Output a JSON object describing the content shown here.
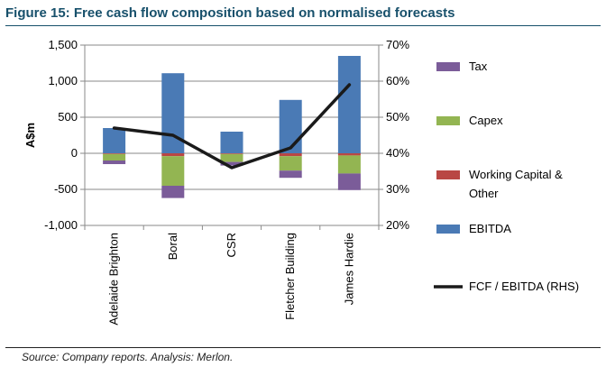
{
  "header": {
    "title": "Figure 15: Free cash flow composition based on normalised forecasts"
  },
  "footer": {
    "source": "Source: Company reports. Analysis: Merlon."
  },
  "chart_data": {
    "type": "bar",
    "stacked": true,
    "categories": [
      "Adelaide Brighton",
      "Boral",
      "CSR",
      "Fletcher Building",
      "James Hardie"
    ],
    "ylabel": "A$m",
    "ylim": [
      -1000,
      1500
    ],
    "yticks": [
      -1000,
      -500,
      0,
      500,
      1000,
      1500
    ],
    "ytick_labels": [
      "-1,000",
      "-500",
      "0",
      "500",
      "1,000",
      "1,500"
    ],
    "y2lim": [
      20,
      70
    ],
    "y2ticks": [
      20,
      30,
      40,
      50,
      60,
      70
    ],
    "y2tick_labels": [
      "20%",
      "30%",
      "40%",
      "50%",
      "60%",
      "70%"
    ],
    "grid": true,
    "legend_position": "right",
    "series": [
      {
        "name": "Tax",
        "kind": "bar",
        "color": "#7b5c99",
        "values": [
          -50,
          -170,
          -50,
          -100,
          -230
        ]
      },
      {
        "name": "Capex",
        "kind": "bar",
        "color": "#93b552",
        "values": [
          -90,
          -410,
          -110,
          -200,
          -250
        ]
      },
      {
        "name": "Working Capital & Other",
        "kind": "bar",
        "color": "#b94744",
        "values": [
          -10,
          -40,
          -10,
          -40,
          -30
        ]
      },
      {
        "name": "EBITDA",
        "kind": "bar",
        "color": "#4a7ab5",
        "values": [
          350,
          1110,
          300,
          740,
          1350
        ]
      },
      {
        "name": "FCF / EBITDA (RHS)",
        "kind": "line",
        "axis": "right",
        "color": "#1a1a1a",
        "values": [
          47,
          45,
          36,
          41.5,
          59
        ]
      }
    ]
  }
}
